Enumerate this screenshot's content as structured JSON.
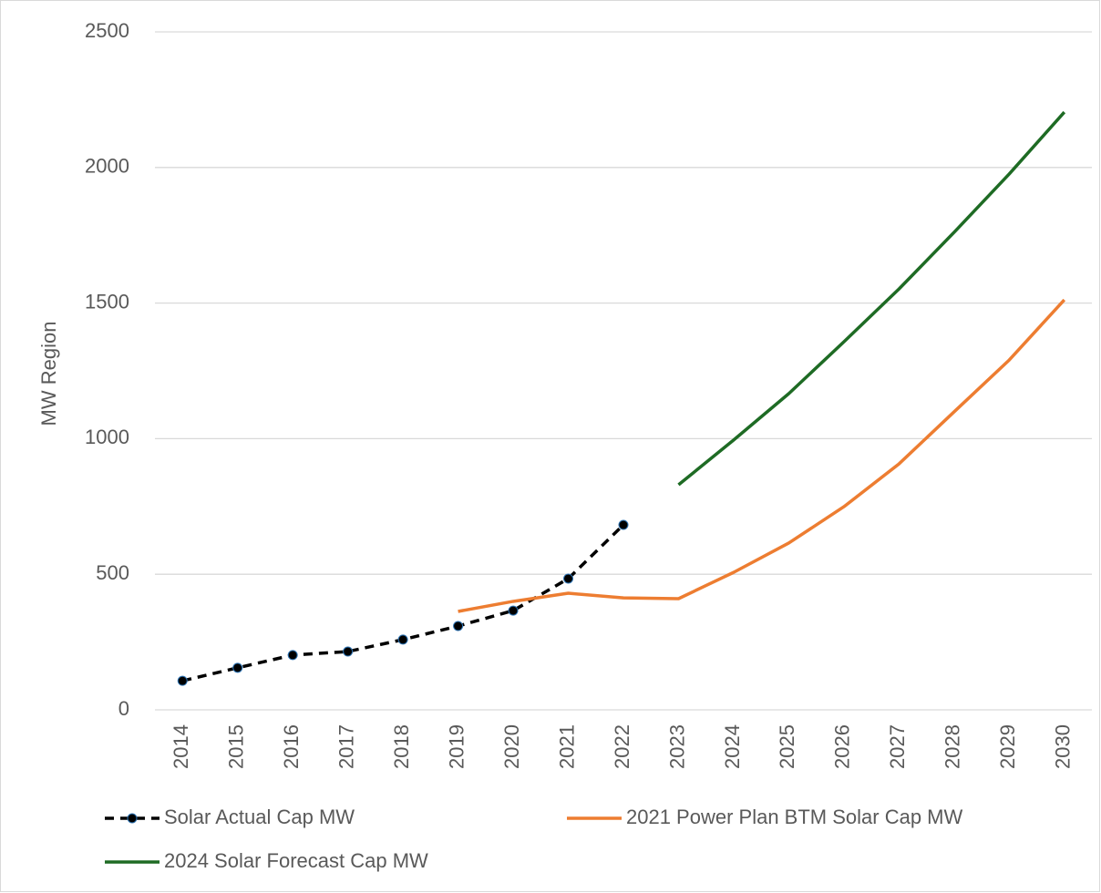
{
  "chart_data": {
    "type": "line",
    "y_label": "MW Region",
    "categories": [
      "2014",
      "2015",
      "2016",
      "2017",
      "2018",
      "2019",
      "2020",
      "2021",
      "2022",
      "2023",
      "2024",
      "2025",
      "2026",
      "2027",
      "2028",
      "2029",
      "2030"
    ],
    "series": [
      {
        "name": "Solar Actual Cap MW",
        "color": "#000000",
        "dashed": true,
        "markers": true,
        "values": [
          107,
          155,
          202,
          215,
          259,
          309,
          366,
          484,
          682,
          null,
          null,
          null,
          null,
          null,
          null,
          null,
          null
        ]
      },
      {
        "name": "2021 Power Plan BTM Solar Cap MW",
        "color": "#ed7d31",
        "dashed": false,
        "markers": false,
        "values": [
          null,
          null,
          null,
          null,
          null,
          363,
          400,
          430,
          413,
          410,
          507,
          615,
          749,
          907,
          1099,
          1290,
          1512
        ]
      },
      {
        "name": "2024 Solar Forecast Cap MW",
        "color": "#1e6b24",
        "dashed": false,
        "markers": false,
        "values": [
          null,
          null,
          null,
          null,
          null,
          null,
          null,
          null,
          null,
          830,
          995,
          1166,
          1357,
          1552,
          1761,
          1976,
          2204
        ]
      }
    ],
    "ylim": [
      0,
      2500
    ],
    "yticks": [
      0,
      500,
      1000,
      1500,
      2000,
      2500
    ],
    "grid": true,
    "legend": "bottom"
  }
}
